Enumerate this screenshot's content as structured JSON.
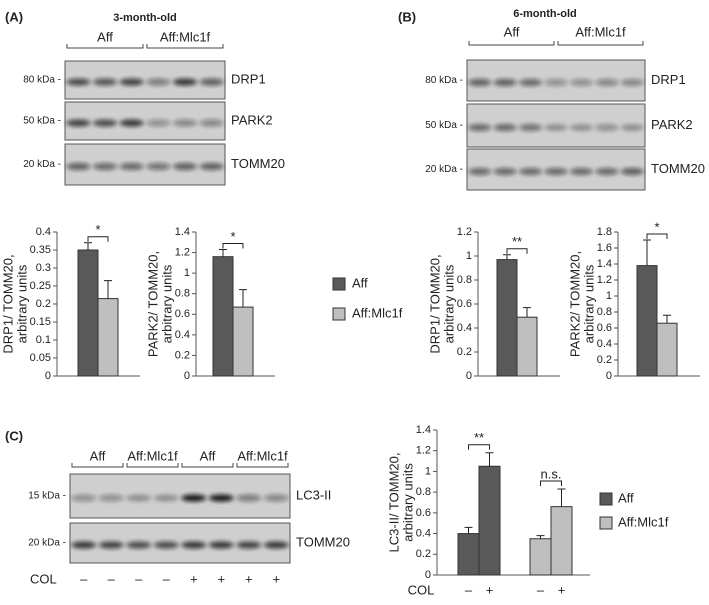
{
  "panels": [
    {
      "label": "(A)",
      "title": "3-month-old",
      "groups": [
        "Aff",
        "Aff:Mlc1f"
      ],
      "blots": [
        {
          "marker": "80 kDa -",
          "protein": "DRP1"
        },
        {
          "marker": "50 kDa -",
          "protein": "PARK2"
        },
        {
          "marker": "20 kDa -",
          "protein": "TOMM20"
        }
      ]
    },
    {
      "label": "(B)",
      "title": "6-month-old",
      "groups": [
        "Aff",
        "Aff:Mlc1f"
      ],
      "blots": [
        {
          "marker": "80 kDa -",
          "protein": "DRP1"
        },
        {
          "marker": "50 kDa -",
          "protein": "PARK2"
        },
        {
          "marker": "20 kDa -",
          "protein": "TOMM20"
        }
      ]
    },
    {
      "label": "(C)",
      "groups": [
        "Aff",
        "Aff:Mlc1f",
        "Aff",
        "Aff:Mlc1f"
      ],
      "blots": [
        {
          "marker": "15 kDa -",
          "protein": "LC3-II"
        },
        {
          "marker": "20 kDa -",
          "protein": "TOMM20"
        }
      ],
      "treatment": {
        "label": "COL",
        "signs": [
          "–",
          "–",
          "–",
          "–",
          "+",
          "+",
          "+",
          "+"
        ]
      }
    }
  ],
  "legend": [
    {
      "name": "Aff",
      "color": "#595959"
    },
    {
      "name": "Aff:Mlc1f",
      "color": "#bfbfbf"
    }
  ],
  "chart_data": [
    {
      "type": "bar",
      "ylabel": [
        "DRP1/ TOMM20,",
        "arbitrary units"
      ],
      "values": [
        0.35,
        0.215
      ],
      "errors": [
        0.02,
        0.05
      ],
      "annotation": "*",
      "ylim": [
        0,
        0.4
      ],
      "yticks": [
        0,
        0.05,
        0.1,
        0.15,
        0.2,
        0.25,
        0.3,
        0.35,
        0.4
      ]
    },
    {
      "type": "bar",
      "ylabel": [
        "PARK2/ TOMM20,",
        "arbitrary units"
      ],
      "values": [
        1.16,
        0.67
      ],
      "errors": [
        0.07,
        0.17
      ],
      "annotation": "*",
      "ylim": [
        0,
        1.4
      ],
      "yticks": [
        0,
        0.2,
        0.4,
        0.6,
        0.8,
        1,
        1.2,
        1.4
      ]
    },
    {
      "type": "bar",
      "ylabel": [
        "DRP1/ TOMM20,",
        "arbitrary units"
      ],
      "values": [
        0.97,
        0.49
      ],
      "errors": [
        0.04,
        0.08
      ],
      "annotation": "**",
      "ylim": [
        0,
        1.2
      ],
      "yticks": [
        0,
        0.2,
        0.4,
        0.6,
        0.8,
        1,
        1.2
      ]
    },
    {
      "type": "bar",
      "ylabel": [
        "PARK2/ TOMM20,",
        "arbitrary units"
      ],
      "values": [
        1.38,
        0.66
      ],
      "errors": [
        0.32,
        0.1
      ],
      "annotation": "*",
      "ylim": [
        0,
        1.8
      ],
      "yticks": [
        0,
        0.2,
        0.4,
        0.6,
        0.8,
        1,
        1.2,
        1.4,
        1.6,
        1.8
      ]
    },
    {
      "type": "grouped",
      "ylabel": [
        "LC3-II/ TOMM20,",
        "arbitrary units"
      ],
      "xlabel": "COL",
      "categories": [
        "–",
        "+"
      ],
      "series": [
        {
          "name": "Aff",
          "color": "#595959",
          "values": [
            0.4,
            1.05
          ],
          "errors": [
            0.06,
            0.13
          ],
          "annotation": "**"
        },
        {
          "name": "Aff:Mlc1f",
          "color": "#bfbfbf",
          "values": [
            0.35,
            0.66
          ],
          "errors": [
            0.03,
            0.17
          ],
          "annotation": "n.s."
        }
      ],
      "ylim": [
        0,
        1.4
      ],
      "yticks": [
        0,
        0.2,
        0.4,
        0.6,
        0.8,
        1,
        1.2,
        1.4
      ]
    }
  ]
}
